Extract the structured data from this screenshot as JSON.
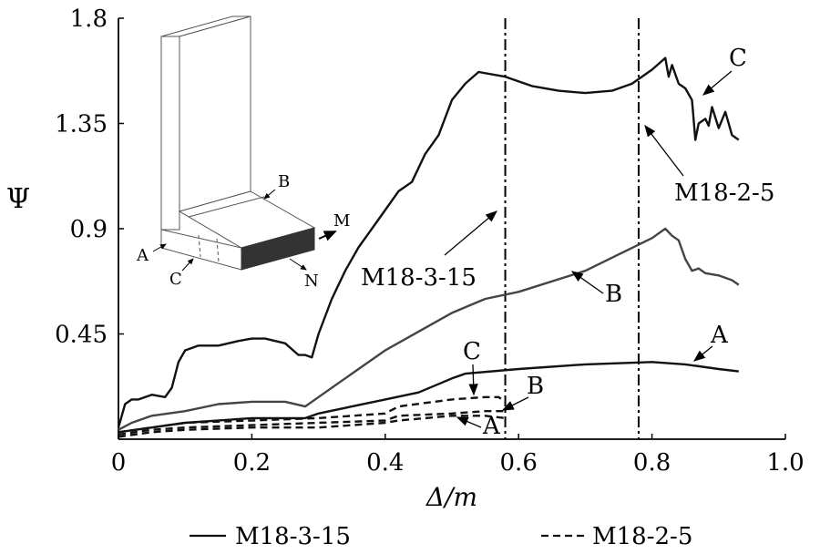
{
  "chart_data": {
    "type": "line",
    "xlabel": "Δ/m",
    "ylabel": "Ψ",
    "xlim": [
      0,
      1.0
    ],
    "ylim": [
      0,
      1.8
    ],
    "xticks": [
      "0",
      "0.2",
      "0.4",
      "0.6",
      "0.8",
      "1.0"
    ],
    "yticks": [
      "0.45",
      "0.9",
      "1.35",
      "1.8"
    ],
    "legend": {
      "placement": "bottom",
      "entries": [
        "M18-3-15",
        "M18-2-5"
      ]
    },
    "vlines": [
      {
        "x": 0.58,
        "label": "M18-3-15"
      },
      {
        "x": 0.78,
        "label": "M18-2-5"
      }
    ],
    "inset_labels": [
      "B",
      "M",
      "A",
      "C",
      "N"
    ],
    "series": [
      {
        "name": "M18-3-15",
        "label": "C",
        "color": "#111111",
        "x": [
          0,
          0.01,
          0.02,
          0.03,
          0.05,
          0.07,
          0.08,
          0.09,
          0.1,
          0.12,
          0.15,
          0.18,
          0.2,
          0.22,
          0.25,
          0.27,
          0.28,
          0.29,
          0.3,
          0.32,
          0.34,
          0.36,
          0.38,
          0.4,
          0.42,
          0.44,
          0.46,
          0.48,
          0.5,
          0.52,
          0.54,
          0.58,
          0.62,
          0.66,
          0.7,
          0.74,
          0.77,
          0.8,
          0.82,
          0.825,
          0.83,
          0.84,
          0.85,
          0.86,
          0.865,
          0.87,
          0.88,
          0.885,
          0.89,
          0.9,
          0.91,
          0.92,
          0.93
        ],
        "y": [
          0.05,
          0.15,
          0.17,
          0.17,
          0.19,
          0.18,
          0.22,
          0.33,
          0.38,
          0.4,
          0.4,
          0.42,
          0.43,
          0.43,
          0.41,
          0.36,
          0.36,
          0.35,
          0.45,
          0.6,
          0.72,
          0.82,
          0.9,
          0.98,
          1.06,
          1.1,
          1.22,
          1.3,
          1.45,
          1.52,
          1.57,
          1.55,
          1.51,
          1.49,
          1.48,
          1.49,
          1.52,
          1.58,
          1.63,
          1.55,
          1.6,
          1.52,
          1.5,
          1.45,
          1.28,
          1.35,
          1.37,
          1.34,
          1.42,
          1.33,
          1.4,
          1.3,
          1.28
        ]
      },
      {
        "name": "M18-3-15",
        "label": "B",
        "color": "#444444",
        "x": [
          0,
          0.02,
          0.05,
          0.1,
          0.15,
          0.2,
          0.25,
          0.28,
          0.3,
          0.35,
          0.4,
          0.45,
          0.5,
          0.55,
          0.6,
          0.7,
          0.8,
          0.82,
          0.83,
          0.84,
          0.85,
          0.86,
          0.87,
          0.88,
          0.9,
          0.92,
          0.93
        ],
        "y": [
          0.04,
          0.07,
          0.1,
          0.12,
          0.15,
          0.16,
          0.16,
          0.14,
          0.18,
          0.28,
          0.38,
          0.46,
          0.54,
          0.6,
          0.63,
          0.72,
          0.86,
          0.9,
          0.87,
          0.85,
          0.77,
          0.72,
          0.73,
          0.71,
          0.7,
          0.68,
          0.66
        ]
      },
      {
        "name": "M18-3-15",
        "label": "A",
        "color": "#111111",
        "x": [
          0,
          0.05,
          0.1,
          0.2,
          0.28,
          0.3,
          0.35,
          0.4,
          0.45,
          0.5,
          0.52,
          0.6,
          0.7,
          0.8,
          0.85,
          0.9,
          0.93
        ],
        "y": [
          0.03,
          0.05,
          0.07,
          0.09,
          0.09,
          0.11,
          0.14,
          0.17,
          0.2,
          0.26,
          0.28,
          0.3,
          0.32,
          0.33,
          0.32,
          0.3,
          0.29
        ]
      },
      {
        "name": "M18-2-5",
        "label": "C",
        "color": "#111111",
        "dashed": true,
        "x": [
          0,
          0.05,
          0.1,
          0.2,
          0.3,
          0.4,
          0.42,
          0.5,
          0.55,
          0.57,
          0.58
        ],
        "y": [
          0.03,
          0.05,
          0.07,
          0.08,
          0.09,
          0.11,
          0.14,
          0.17,
          0.18,
          0.18,
          0.16
        ]
      },
      {
        "name": "M18-2-5",
        "label": "B",
        "color": "#111111",
        "dashed": true,
        "x": [
          0,
          0.05,
          0.1,
          0.2,
          0.3,
          0.4,
          0.42,
          0.5,
          0.55,
          0.58
        ],
        "y": [
          0.02,
          0.04,
          0.05,
          0.06,
          0.07,
          0.08,
          0.1,
          0.11,
          0.12,
          0.12
        ]
      },
      {
        "name": "M18-2-5",
        "label": "A",
        "color": "#111111",
        "dashed": true,
        "x": [
          0,
          0.05,
          0.1,
          0.2,
          0.3,
          0.4,
          0.42,
          0.5,
          0.55,
          0.58
        ],
        "y": [
          0.01,
          0.03,
          0.04,
          0.05,
          0.05,
          0.07,
          0.08,
          0.1,
          0.1,
          0.09
        ]
      }
    ]
  }
}
